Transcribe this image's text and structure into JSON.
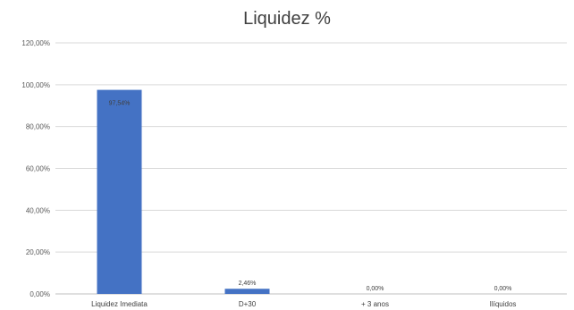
{
  "chart_data": {
    "type": "bar",
    "title": "Liquidez %",
    "categories": [
      "Liquidez Imediata",
      "D+30",
      "+ 3 anos",
      "Ilíquidos"
    ],
    "values": [
      97.54,
      2.46,
      0.0,
      0.0
    ],
    "value_labels": [
      "97,54%",
      "2,46%",
      "0,00%",
      "0,00%"
    ],
    "y_ticks": [
      "0,00%",
      "20,00%",
      "40,00%",
      "60,00%",
      "80,00%",
      "100,00%",
      "120,00%"
    ],
    "ylim": [
      0,
      120
    ],
    "grid": true,
    "bar_color": "#4472C4"
  }
}
